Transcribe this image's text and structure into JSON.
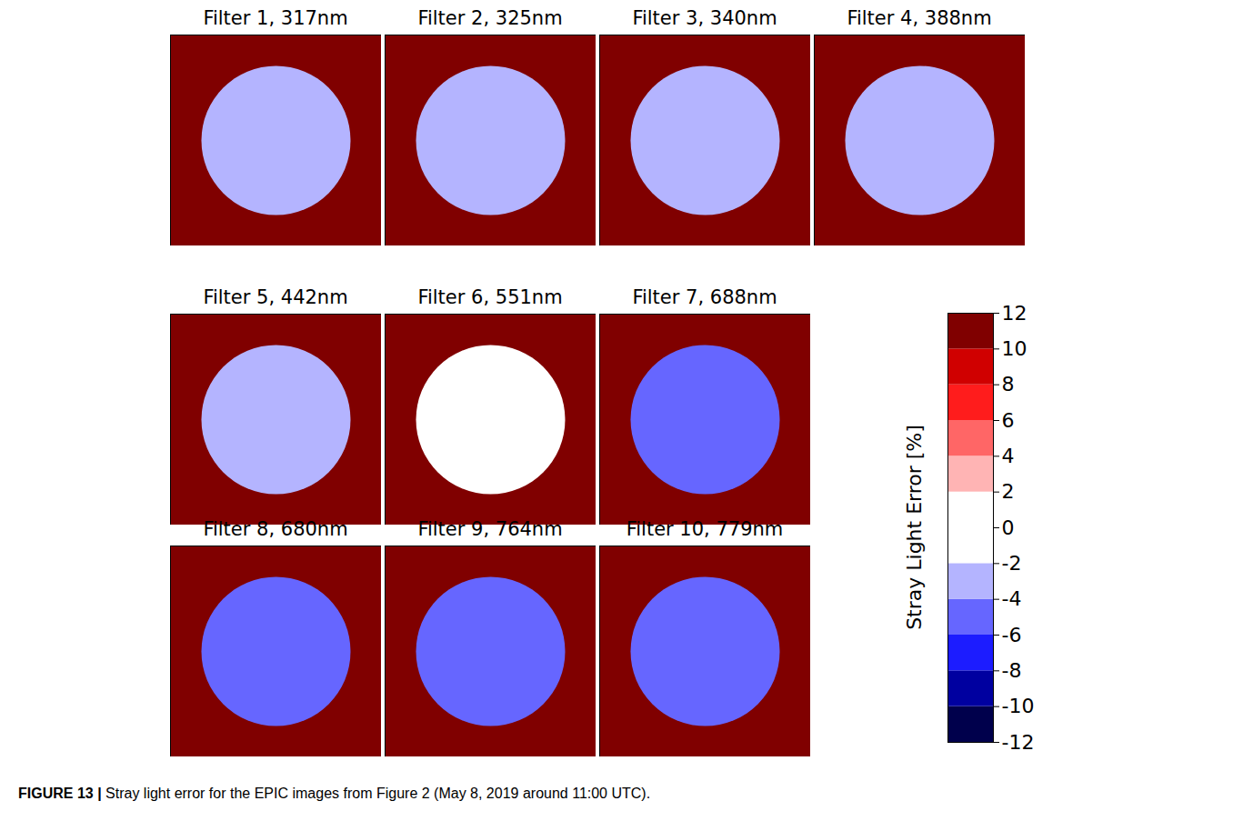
{
  "chart_data": {
    "type": "heatmap",
    "panels": [
      {
        "title": "Filter 1, 317nm",
        "disk": -3,
        "surround": 12
      },
      {
        "title": "Filter 2, 325nm",
        "disk": -3,
        "surround": 12
      },
      {
        "title": "Filter 3, 340nm",
        "disk": -3,
        "surround": 12
      },
      {
        "title": "Filter 4, 388nm",
        "disk": -3,
        "surround": 12
      },
      {
        "title": "Filter 5, 442nm",
        "disk": -3,
        "surround": 12
      },
      {
        "title": "Filter 6, 551nm",
        "disk": 1,
        "surround": 12
      },
      {
        "title": "Filter 7, 688nm",
        "disk": -5,
        "surround": 12
      },
      {
        "title": "Filter 8, 680nm",
        "disk": -5,
        "surround": 12
      },
      {
        "title": "Filter 9, 764nm",
        "disk": -5,
        "surround": 12
      },
      {
        "title": "Filter 10, 779nm",
        "disk": -5,
        "surround": 12
      }
    ],
    "colorbar": {
      "label": "Stray Light Error [%]",
      "range": [
        -12,
        12
      ],
      "ticks": [
        -12,
        -10,
        -8,
        -6,
        -4,
        -2,
        0,
        2,
        4,
        6,
        8,
        10,
        12
      ],
      "colors": [
        "#00004c",
        "#0000a0",
        "#1c1cff",
        "#6666ff",
        "#b4b4ff",
        "#ffffff",
        "#ffffff",
        "#ffb4b4",
        "#ff6666",
        "#ff1c1c",
        "#d00000",
        "#800000"
      ]
    }
  },
  "caption": "FIGURE 13 | Stray light error for the EPIC images from Figure 2 (May 8, 2019 around 11:00 UTC)."
}
